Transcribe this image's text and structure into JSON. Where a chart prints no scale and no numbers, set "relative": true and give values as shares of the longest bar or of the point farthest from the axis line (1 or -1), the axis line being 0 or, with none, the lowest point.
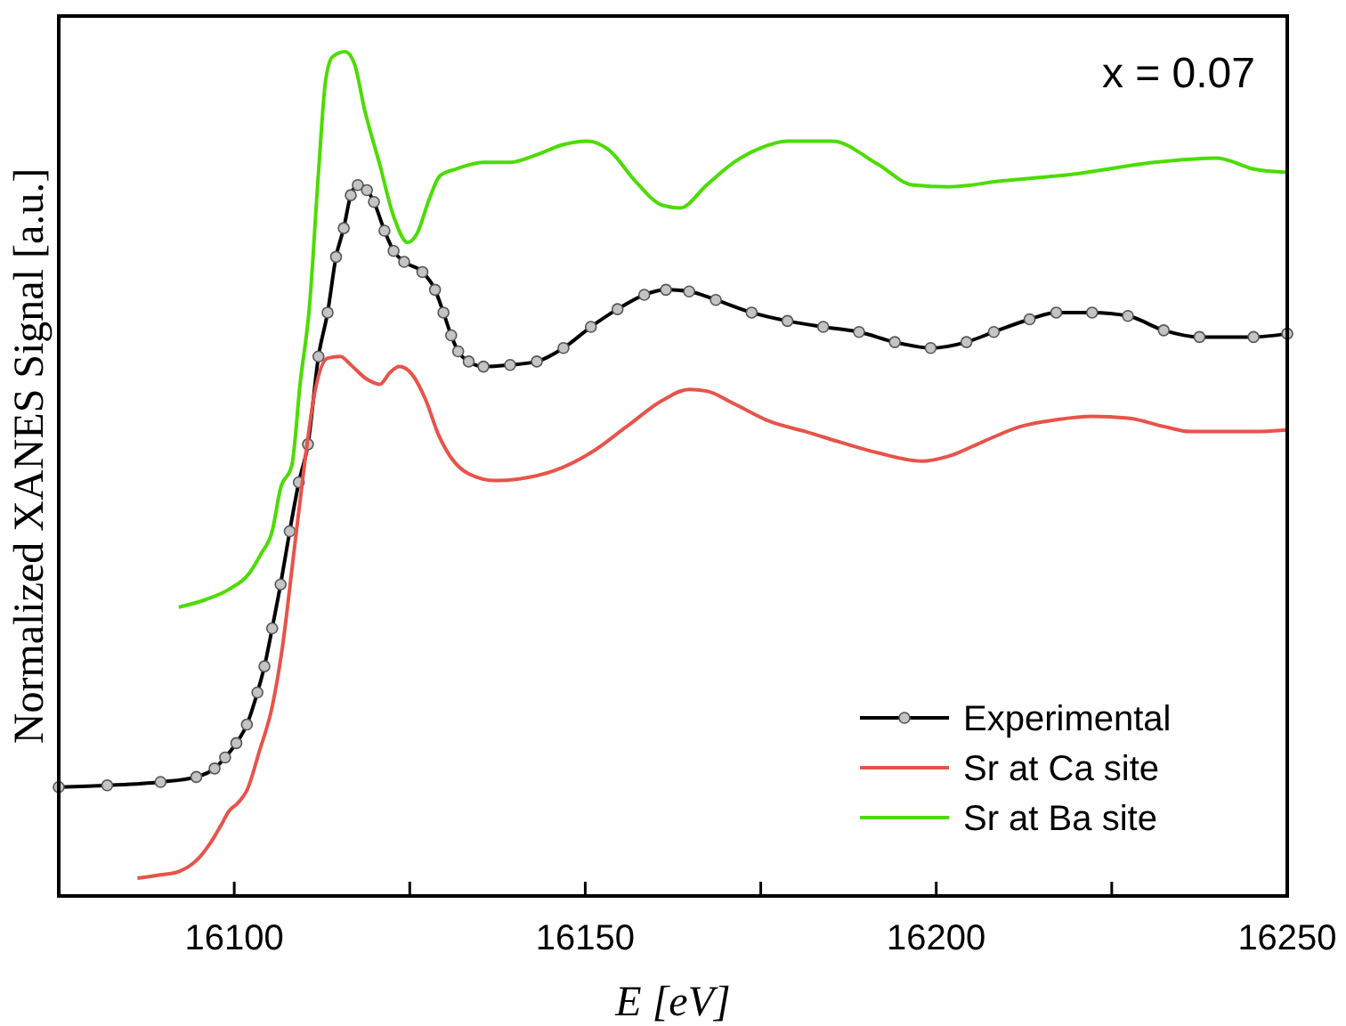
{
  "chart_data": {
    "type": "line",
    "xlabel": "E [eV]",
    "ylabel": "Normalized XANES Signal [a.u.]",
    "relative": true,
    "xlim": [
      16075,
      16250
    ],
    "xticks": [
      16100,
      {
        "value": 16125,
        "label": null
      },
      16150,
      {
        "value": 16175,
        "label": null
      },
      16200,
      {
        "value": 16225,
        "label": null
      },
      16250
    ],
    "legend": "bottom right",
    "grid": false,
    "annotations": [
      "x = 0.07"
    ],
    "series": [
      {
        "name": "Experimental",
        "color": "#000000",
        "marker": "circle",
        "x": [
          16075,
          16081.9,
          16089.5,
          16094.6,
          16097.2,
          16098.7,
          16100.3,
          16101.8,
          16103.3,
          16104.3,
          16105.4,
          16106.6,
          16107.9,
          16109.2,
          16110.5,
          16112,
          16113.3,
          16114.5,
          16115.6,
          16116.6,
          16117.6,
          16118.9,
          16119.9,
          16121.4,
          16122.7,
          16124.2,
          16126.8,
          16128.6,
          16129.8,
          16130.9,
          16131.9,
          16133.4,
          16135.5,
          16139.3,
          16143.1,
          16146.9,
          16150.8,
          16154.6,
          16158.4,
          16161.5,
          16164.8,
          16168.6,
          16173.7,
          16178.8,
          16183.9,
          16189,
          16194.1,
          16199.2,
          16204.3,
          16208.2,
          16213.3,
          16217.1,
          16222.2,
          16227.3,
          16232.4,
          16237.5,
          16245.2,
          16250
        ],
        "values": [
          0.129,
          0.131,
          0.135,
          0.141,
          0.151,
          0.164,
          0.181,
          0.203,
          0.241,
          0.272,
          0.317,
          0.369,
          0.432,
          0.49,
          0.535,
          0.639,
          0.691,
          0.757,
          0.791,
          0.83,
          0.842,
          0.836,
          0.822,
          0.788,
          0.764,
          0.751,
          0.739,
          0.718,
          0.691,
          0.664,
          0.645,
          0.633,
          0.627,
          0.629,
          0.633,
          0.649,
          0.674,
          0.695,
          0.712,
          0.718,
          0.716,
          0.706,
          0.691,
          0.681,
          0.674,
          0.668,
          0.656,
          0.649,
          0.656,
          0.668,
          0.683,
          0.691,
          0.691,
          0.687,
          0.67,
          0.662,
          0.662,
          0.666
        ]
      },
      {
        "name": "Sr at Ca site",
        "color": "#e8534a",
        "marker": "none",
        "x": [
          16086.2,
          16089.5,
          16092.1,
          16094.6,
          16096.7,
          16098.2,
          16099.2,
          16100.5,
          16101.8,
          16103.6,
          16105.4,
          16106.9,
          16108.4,
          16109.9,
          16111.5,
          16113.3,
          16115.1,
          16116.6,
          16118.9,
          16120.7,
          16122.2,
          16123.5,
          16125.3,
          16127.3,
          16129.1,
          16130.9,
          16133.4,
          16137.2,
          16140.6,
          16145.7,
          16150.8,
          16155.9,
          16161,
          16164.8,
          16167.3,
          16171.2,
          16176.3,
          16181.4,
          16186.5,
          16191.6,
          16198,
          16201.8,
          16206.9,
          16212,
          16217.1,
          16222.2,
          16227.3,
          16232.4,
          16236.2,
          16245.2,
          16250
        ],
        "values": [
          0.021,
          0.025,
          0.029,
          0.042,
          0.064,
          0.085,
          0.1,
          0.11,
          0.125,
          0.172,
          0.224,
          0.297,
          0.4,
          0.504,
          0.598,
          0.637,
          0.639,
          0.629,
          0.612,
          0.606,
          0.62,
          0.627,
          0.618,
          0.587,
          0.546,
          0.519,
          0.5,
          0.492,
          0.494,
          0.504,
          0.525,
          0.556,
          0.587,
          0.6,
          0.598,
          0.583,
          0.562,
          0.55,
          0.537,
          0.525,
          0.515,
          0.521,
          0.539,
          0.556,
          0.564,
          0.568,
          0.566,
          0.556,
          0.55,
          0.55,
          0.552
        ]
      },
      {
        "name": "Sr at Ba site",
        "color": "#4cdc00",
        "marker": "none",
        "x": [
          16092.1,
          16095.9,
          16099.2,
          16102.3,
          16103.8,
          16105.4,
          16106.6,
          16108.2,
          16109.4,
          16110.7,
          16112,
          16113,
          16114,
          16115.8,
          16117.1,
          16118.6,
          16120.7,
          16122.7,
          16124.7,
          16126,
          16127.8,
          16129.3,
          16131.6,
          16135.5,
          16139.3,
          16143.1,
          16146.9,
          16150.3,
          16153.3,
          16157.1,
          16161,
          16163.5,
          16167.3,
          16171.2,
          16175,
          16178.8,
          16185.2,
          16191.6,
          16196.7,
          16201.8,
          16209.4,
          16219.6,
          16231.1,
          16240,
          16245.2,
          16250
        ],
        "values": [
          0.342,
          0.351,
          0.363,
          0.384,
          0.405,
          0.432,
          0.483,
          0.51,
          0.608,
          0.697,
          0.857,
          0.965,
          0.994,
          1,
          0.986,
          0.93,
          0.867,
          0.805,
          0.774,
          0.784,
          0.826,
          0.853,
          0.861,
          0.869,
          0.869,
          0.878,
          0.89,
          0.894,
          0.884,
          0.847,
          0.818,
          0.815,
          0.842,
          0.869,
          0.886,
          0.894,
          0.894,
          0.867,
          0.842,
          0.84,
          0.847,
          0.855,
          0.869,
          0.874,
          0.861,
          0.857
        ]
      }
    ]
  }
}
